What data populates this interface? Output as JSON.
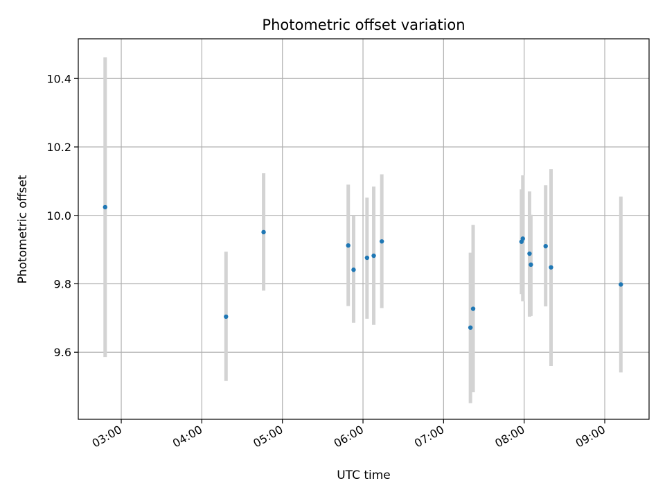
{
  "chart_data": {
    "type": "scatter",
    "title": "Photometric offset variation",
    "xlabel": "UTC time",
    "ylabel": "Photometric offset",
    "x_unit": "UTC time of day (HH:MM)",
    "xlim": [
      "02:28",
      "09:33"
    ],
    "ylim": [
      9.404,
      10.516
    ],
    "x_ticks": [
      "03:00",
      "04:00",
      "05:00",
      "06:00",
      "07:00",
      "08:00",
      "09:00"
    ],
    "y_ticks": [
      "9.6",
      "9.8",
      "10.0",
      "10.2",
      "10.4"
    ],
    "grid": true,
    "legend": "none",
    "colors": {
      "points": "#1f77b4",
      "errorbars": "#d3d3d3",
      "grid": "#b0b0b0",
      "axes": "#000000"
    },
    "points": [
      {
        "x": "02:48",
        "y": 10.024,
        "ylow": 9.586,
        "yhigh": 10.462
      },
      {
        "x": "04:18",
        "y": 9.704,
        "ylow": 9.516,
        "yhigh": 9.894
      },
      {
        "x": "04:46",
        "y": 9.951,
        "ylow": 9.78,
        "yhigh": 10.123
      },
      {
        "x": "05:49",
        "y": 9.912,
        "ylow": 9.735,
        "yhigh": 10.09
      },
      {
        "x": "05:53",
        "y": 9.841,
        "ylow": 9.686,
        "yhigh": 10.0
      },
      {
        "x": "06:03",
        "y": 9.876,
        "ylow": 9.698,
        "yhigh": 10.052
      },
      {
        "x": "06:08",
        "y": 9.882,
        "ylow": 9.68,
        "yhigh": 10.084
      },
      {
        "x": "06:14",
        "y": 9.924,
        "ylow": 9.729,
        "yhigh": 10.12
      },
      {
        "x": "07:20",
        "y": 9.672,
        "ylow": 9.451,
        "yhigh": 9.891
      },
      {
        "x": "07:22",
        "y": 9.727,
        "ylow": 9.483,
        "yhigh": 9.972
      },
      {
        "x": "07:58",
        "y": 9.923,
        "ylow": 9.77,
        "yhigh": 10.076
      },
      {
        "x": "07:59",
        "y": 9.932,
        "ylow": 9.749,
        "yhigh": 10.117
      },
      {
        "x": "08:04",
        "y": 9.888,
        "ylow": 9.704,
        "yhigh": 10.07
      },
      {
        "x": "08:05",
        "y": 9.856,
        "ylow": 9.706,
        "yhigh": 10.002
      },
      {
        "x": "08:16",
        "y": 9.91,
        "ylow": 9.734,
        "yhigh": 10.088
      },
      {
        "x": "08:20",
        "y": 9.848,
        "ylow": 9.56,
        "yhigh": 10.135
      },
      {
        "x": "09:12",
        "y": 9.798,
        "ylow": 9.541,
        "yhigh": 10.055
      }
    ]
  }
}
